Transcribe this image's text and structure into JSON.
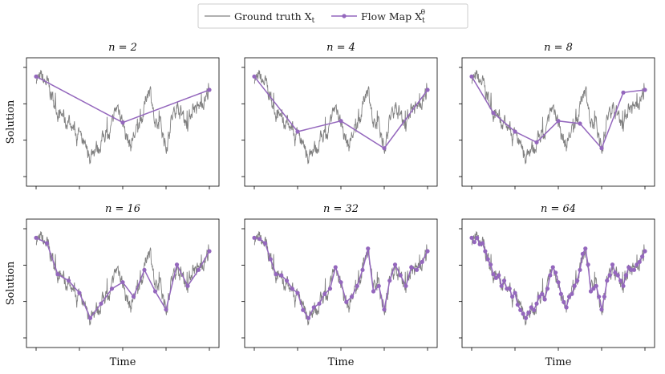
{
  "legend": {
    "ground_truth_label": "Ground truth X",
    "ground_truth_sub": "t",
    "flow_map_label": "Flow Map X",
    "flow_map_sub": "t",
    "flow_map_sup": "θ"
  },
  "colors": {
    "ground_truth": "#808080",
    "flow_map": "#9467bd"
  },
  "chart_data": [
    {
      "type": "line",
      "title": "n = 2",
      "xlabel": "",
      "ylabel": "Solution",
      "xlim": [
        0,
        1
      ],
      "ylim": [
        -1.45,
        0.95
      ],
      "series": [
        {
          "name": "Flow Map",
          "x": [
            0,
            0.5,
            1
          ],
          "y": [
            0.6,
            -0.26,
            0.35
          ]
        }
      ]
    },
    {
      "type": "line",
      "title": "n = 4",
      "xlabel": "",
      "ylabel": "",
      "xlim": [
        0,
        1
      ],
      "ylim": [
        -1.45,
        0.95
      ],
      "series": [
        {
          "name": "Flow Map",
          "x": [
            0,
            0.25,
            0.5,
            0.75,
            1
          ],
          "y": [
            0.6,
            -0.43,
            -0.23,
            -0.74,
            0.35
          ]
        }
      ]
    },
    {
      "type": "line",
      "title": "n = 8",
      "xlabel": "",
      "ylabel": "",
      "xlim": [
        0,
        1
      ],
      "ylim": [
        -1.45,
        0.95
      ],
      "series": [
        {
          "name": "Flow Map",
          "x": [
            0,
            0.125,
            0.25,
            0.375,
            0.5,
            0.625,
            0.75,
            0.875,
            1
          ],
          "y": [
            0.6,
            -0.08,
            -0.43,
            -0.63,
            -0.23,
            -0.28,
            -0.74,
            0.3,
            0.35
          ]
        }
      ]
    },
    {
      "type": "line",
      "title": "n = 16",
      "xlabel": "",
      "ylabel": "Solution",
      "xlim": [
        0,
        1
      ],
      "ylim": [
        -1.45,
        0.95
      ],
      "series": [
        {
          "name": "Flow Map",
          "x": [
            0,
            0.0625,
            0.125,
            0.1875,
            0.25,
            0.3125,
            0.375,
            0.4375,
            0.5,
            0.5625,
            0.625,
            0.6875,
            0.75,
            0.8125,
            0.875,
            0.9375,
            1
          ],
          "y": [
            0.6,
            0.5,
            -0.08,
            -0.2,
            -0.43,
            -0.9,
            -0.63,
            -0.35,
            -0.23,
            -0.5,
            0.0,
            -0.4,
            -0.74,
            0.1,
            -0.3,
            0.0,
            0.35
          ]
        }
      ]
    },
    {
      "type": "line",
      "title": "n = 32",
      "xlabel": "Time",
      "ylabel": "",
      "xlim": [
        0,
        1
      ],
      "ylim": [
        -1.45,
        0.95
      ],
      "series": [
        {
          "name": "Flow Map",
          "x": [
            0,
            0.03125,
            0.0625,
            0.09375,
            0.125,
            0.15625,
            0.1875,
            0.21875,
            0.25,
            0.28125,
            0.3125,
            0.34375,
            0.375,
            0.40625,
            0.4375,
            0.46875,
            0.5,
            0.53125,
            0.5625,
            0.59375,
            0.625,
            0.65625,
            0.6875,
            0.71875,
            0.75,
            0.78125,
            0.8125,
            0.84375,
            0.875,
            0.90625,
            0.9375,
            0.96875,
            1
          ],
          "y": [
            0.6,
            0.58,
            0.5,
            0.2,
            -0.08,
            -0.1,
            -0.2,
            -0.35,
            -0.43,
            -0.75,
            -0.9,
            -0.7,
            -0.63,
            -0.45,
            -0.35,
            0.05,
            -0.23,
            -0.6,
            -0.5,
            -0.3,
            0.0,
            0.4,
            -0.4,
            -0.3,
            -0.74,
            -0.2,
            0.1,
            -0.1,
            -0.3,
            0.05,
            0.0,
            0.15,
            0.35
          ]
        }
      ]
    },
    {
      "type": "line",
      "title": "n = 64",
      "xlabel": "Time",
      "ylabel": "",
      "xlim": [
        0,
        1
      ],
      "ylim": [
        -1.45,
        0.95
      ],
      "series": [
        {
          "name": "Flow Map",
          "x": [
            0,
            0.015625,
            0.03125,
            0.046875,
            0.0625,
            0.078125,
            0.09375,
            0.109375,
            0.125,
            0.140625,
            0.15625,
            0.171875,
            0.1875,
            0.203125,
            0.21875,
            0.234375,
            0.25,
            0.265625,
            0.28125,
            0.296875,
            0.3125,
            0.328125,
            0.34375,
            0.359375,
            0.375,
            0.390625,
            0.40625,
            0.421875,
            0.4375,
            0.453125,
            0.46875,
            0.484375,
            0.5,
            0.515625,
            0.53125,
            0.546875,
            0.5625,
            0.578125,
            0.59375,
            0.609375,
            0.625,
            0.640625,
            0.65625,
            0.671875,
            0.6875,
            0.703125,
            0.71875,
            0.734375,
            0.75,
            0.765625,
            0.78125,
            0.796875,
            0.8125,
            0.828125,
            0.84375,
            0.859375,
            0.875,
            0.890625,
            0.90625,
            0.921875,
            0.9375,
            0.953125,
            0.96875,
            0.984375,
            1
          ],
          "y": [
            0.6,
            0.52,
            0.6,
            0.48,
            0.5,
            0.35,
            0.2,
            0.1,
            -0.08,
            -0.15,
            -0.1,
            -0.3,
            -0.2,
            -0.35,
            -0.35,
            -0.5,
            -0.43,
            -0.65,
            -0.75,
            -0.82,
            -0.9,
            -0.8,
            -0.7,
            -0.75,
            -0.63,
            -0.5,
            -0.45,
            -0.55,
            -0.35,
            -0.1,
            0.05,
            -0.05,
            -0.23,
            -0.45,
            -0.6,
            -0.7,
            -0.5,
            -0.45,
            -0.3,
            -0.2,
            0.0,
            0.3,
            0.4,
            0.1,
            -0.4,
            -0.35,
            -0.3,
            -0.5,
            -0.74,
            -0.5,
            -0.2,
            -0.1,
            0.1,
            -0.05,
            -0.1,
            -0.2,
            -0.3,
            -0.1,
            0.05,
            0.0,
            0.0,
            0.1,
            0.15,
            0.25,
            0.35
          ]
        }
      ]
    }
  ]
}
